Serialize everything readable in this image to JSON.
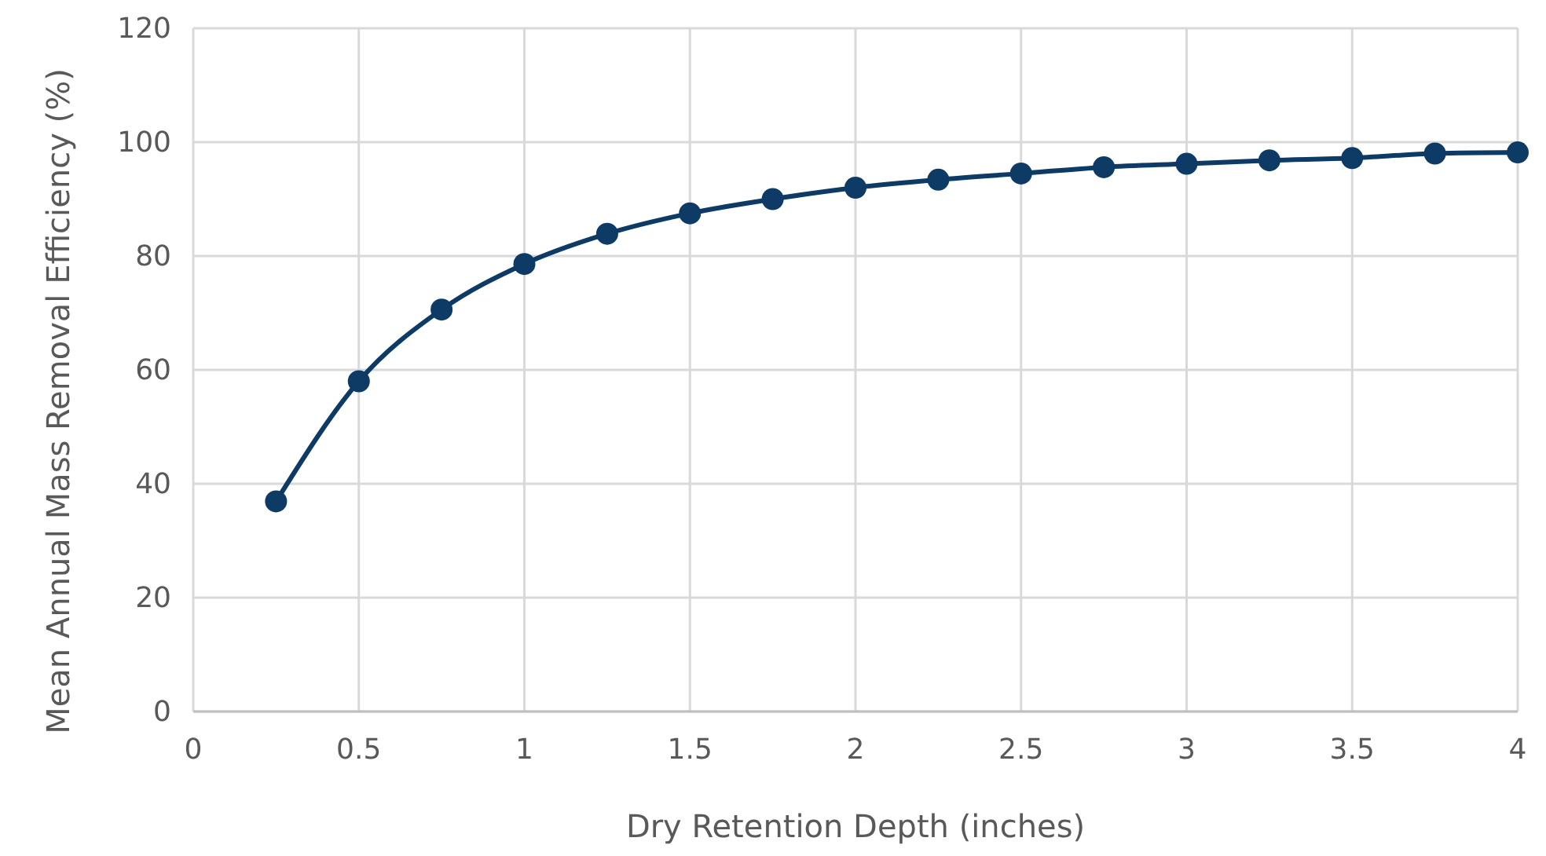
{
  "chart_data": {
    "type": "line",
    "xlabel": "Dry Retention Depth (inches)",
    "ylabel": "Mean Annual Mass Removal Efficiency (%)",
    "x": [
      0.25,
      0.5,
      0.75,
      1,
      1.25,
      1.5,
      1.75,
      2,
      2.25,
      2.5,
      2.75,
      3,
      3.25,
      3.5,
      3.75,
      4
    ],
    "series": [
      {
        "color": "#0e3a66",
        "values": [
          36.9,
          58,
          70.6,
          78.6,
          83.9,
          87.5,
          90,
          92,
          93.4,
          94.5,
          95.6,
          96.2,
          96.8,
          97.2,
          98,
          98.2
        ]
      }
    ],
    "xlim": [
      0,
      4
    ],
    "xticks": [
      0,
      0.5,
      1,
      1.5,
      2,
      2.5,
      3,
      3.5,
      4
    ],
    "ylim": [
      0,
      120
    ],
    "yticks": [
      0,
      20,
      40,
      60,
      80,
      100,
      120
    ],
    "grid": true,
    "marker": "circle",
    "line_style": "solid"
  }
}
